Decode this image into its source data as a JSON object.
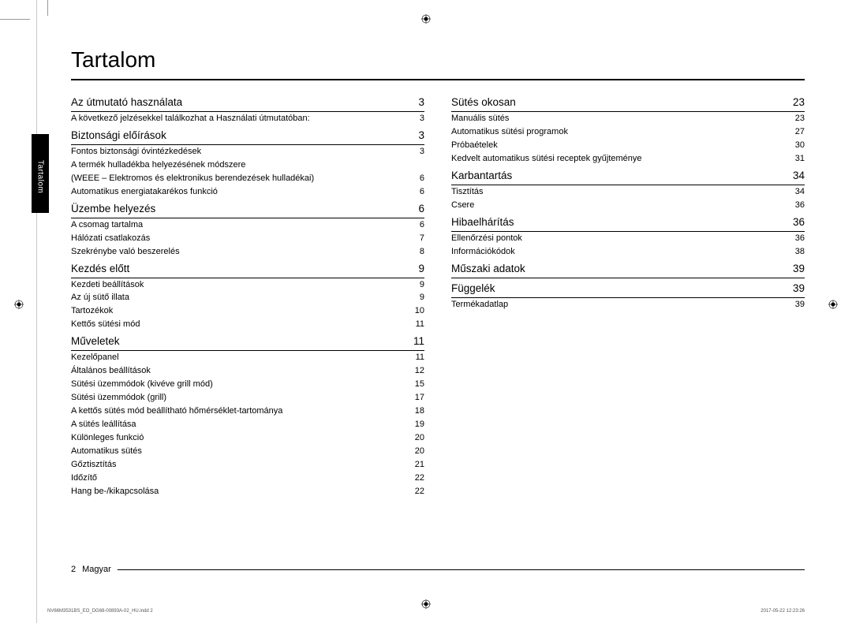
{
  "side_tab": "Tartalom",
  "title": "Tartalom",
  "footer_page": "2",
  "footer_lang": "Magyar",
  "imprint_left": "NV66M3531BS_EO_DG68-00893A-02_HU.indd   2",
  "imprint_right": "2017-05-22   12:23:26",
  "left": [
    {
      "type": "section",
      "label": "Az útmutató használata",
      "page": "3",
      "first": true
    },
    {
      "type": "entry",
      "label": "A következő jelzésekkel találkozhat a Használati útmutatóban:",
      "page": "3"
    },
    {
      "type": "section",
      "label": "Biztonsági előírások",
      "page": "3"
    },
    {
      "type": "entry",
      "label": "Fontos biztonsági óvintézkedések",
      "page": "3"
    },
    {
      "type": "entry",
      "label": "A termék hulladékba helyezésének módszere",
      "page": ""
    },
    {
      "type": "entry",
      "label": "(WEEE – Elektromos és elektronikus berendezések hulladékai)",
      "page": "6"
    },
    {
      "type": "entry",
      "label": "Automatikus energiatakarékos funkció",
      "page": "6"
    },
    {
      "type": "section",
      "label": "Üzembe helyezés",
      "page": "6"
    },
    {
      "type": "entry",
      "label": "A csomag tartalma",
      "page": "6"
    },
    {
      "type": "entry",
      "label": "Hálózati csatlakozás",
      "page": "7"
    },
    {
      "type": "entry",
      "label": "Szekrénybe való beszerelés",
      "page": "8"
    },
    {
      "type": "section",
      "label": "Kezdés előtt",
      "page": "9"
    },
    {
      "type": "entry",
      "label": "Kezdeti beállítások",
      "page": "9"
    },
    {
      "type": "entry",
      "label": "Az új sütő illata",
      "page": "9"
    },
    {
      "type": "entry",
      "label": "Tartozékok",
      "page": "10"
    },
    {
      "type": "entry",
      "label": "Kettős sütési mód",
      "page": "11"
    },
    {
      "type": "section",
      "label": "Műveletek",
      "page": "11"
    },
    {
      "type": "entry",
      "label": "Kezelőpanel",
      "page": "11"
    },
    {
      "type": "entry",
      "label": "Általános beállítások",
      "page": "12"
    },
    {
      "type": "entry",
      "label": "Sütési üzemmódok (kivéve grill mód)",
      "page": "15"
    },
    {
      "type": "entry",
      "label": "Sütési üzemmódok (grill)",
      "page": "17"
    },
    {
      "type": "entry",
      "label": "A kettős sütés mód beállítható hőmérséklet-tartománya",
      "page": "18"
    },
    {
      "type": "entry",
      "label": "A sütés leállítása",
      "page": "19"
    },
    {
      "type": "entry",
      "label": "Különleges funkció",
      "page": "20"
    },
    {
      "type": "entry",
      "label": "Automatikus sütés",
      "page": "20"
    },
    {
      "type": "entry",
      "label": "Gőztisztítás",
      "page": "21"
    },
    {
      "type": "entry",
      "label": "Időzítő",
      "page": "22"
    },
    {
      "type": "entry",
      "label": "Hang be-/kikapcsolása",
      "page": "22"
    }
  ],
  "right": [
    {
      "type": "section",
      "label": "Sütés okosan",
      "page": "23",
      "first": true
    },
    {
      "type": "entry",
      "label": "Manuális sütés",
      "page": "23"
    },
    {
      "type": "entry",
      "label": "Automatikus sütési programok",
      "page": "27"
    },
    {
      "type": "entry",
      "label": "Próbaételek",
      "page": "30"
    },
    {
      "type": "entry",
      "label": "Kedvelt automatikus sütési receptek gyűjteménye",
      "page": "31"
    },
    {
      "type": "section",
      "label": "Karbantartás",
      "page": "34"
    },
    {
      "type": "entry",
      "label": "Tisztítás",
      "page": "34"
    },
    {
      "type": "entry",
      "label": "Csere",
      "page": "36"
    },
    {
      "type": "section",
      "label": "Hibaelhárítás",
      "page": "36"
    },
    {
      "type": "entry",
      "label": "Ellenőrzési pontok",
      "page": "36"
    },
    {
      "type": "entry",
      "label": "Információkódok",
      "page": "38"
    },
    {
      "type": "section",
      "label": "Műszaki adatok",
      "page": "39"
    },
    {
      "type": "section",
      "label": "Függelék",
      "page": "39"
    },
    {
      "type": "entry",
      "label": "Termékadatlap",
      "page": "39"
    }
  ]
}
